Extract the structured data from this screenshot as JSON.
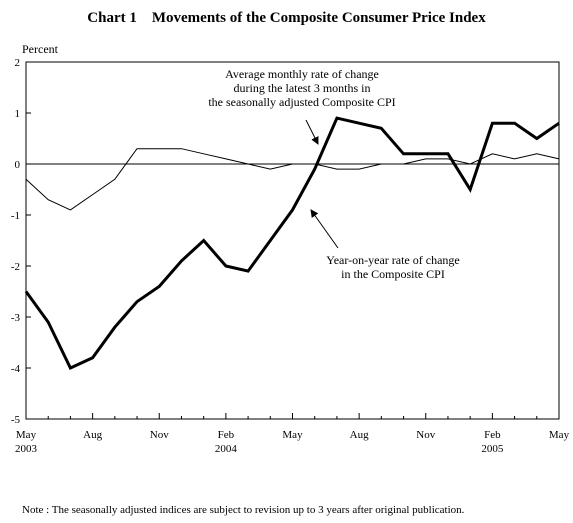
{
  "title": "Chart 1　Movements of the Composite Consumer Price Index",
  "note": "Note : The seasonally adjusted indices are subject to revision up to 3 years after original publication.",
  "chart_data": {
    "type": "line",
    "title": "Chart 1　Movements of the Composite Consumer Price Index",
    "ylabel": "Percent",
    "ylim": [
      -5,
      2
    ],
    "yticks": [
      "2",
      "1",
      "0",
      "-1",
      "-2",
      "-3",
      "-4",
      "-5"
    ],
    "x_tick_labels": [
      {
        "label": "May",
        "sub": "2003"
      },
      {
        "label": "Aug",
        "sub": ""
      },
      {
        "label": "Nov",
        "sub": ""
      },
      {
        "label": "Feb",
        "sub": "2004"
      },
      {
        "label": "May",
        "sub": ""
      },
      {
        "label": "Aug",
        "sub": ""
      },
      {
        "label": "Nov",
        "sub": ""
      },
      {
        "label": "Feb",
        "sub": "2005"
      },
      {
        "label": "May",
        "sub": ""
      }
    ],
    "x": [
      "2003-05",
      "2003-06",
      "2003-07",
      "2003-08",
      "2003-09",
      "2003-10",
      "2003-11",
      "2003-12",
      "2004-01",
      "2004-02",
      "2004-03",
      "2004-04",
      "2004-05",
      "2004-06",
      "2004-07",
      "2004-08",
      "2004-09",
      "2004-10",
      "2004-11",
      "2004-12",
      "2005-01",
      "2005-02",
      "2005-03",
      "2005-04",
      "2005-05"
    ],
    "series": [
      {
        "label": "Average monthly rate of change\nduring the latest 3 months in\nthe seasonally adjusted Composite CPI",
        "style": "thick",
        "values": [
          -2.5,
          -3.1,
          -4.0,
          -3.8,
          -3.2,
          -2.7,
          -2.4,
          -1.9,
          -1.5,
          -2.0,
          -2.1,
          -1.5,
          -0.9,
          -0.1,
          0.9,
          0.8,
          0.7,
          0.2,
          0.2,
          0.2,
          -0.5,
          0.8,
          0.8,
          0.5,
          0.8
        ]
      },
      {
        "label": "Year-on-year rate of change\nin the Composite CPI",
        "style": "thin",
        "values": [
          -0.3,
          -0.7,
          -0.9,
          -0.6,
          -0.3,
          0.3,
          0.3,
          0.3,
          0.2,
          0.1,
          0.0,
          -0.1,
          0.0,
          0.0,
          -0.1,
          -0.1,
          0.0,
          0.0,
          0.1,
          0.1,
          0.0,
          0.2,
          0.1,
          0.2,
          0.1
        ]
      }
    ],
    "grid": false,
    "legend": "annotations with arrows"
  }
}
